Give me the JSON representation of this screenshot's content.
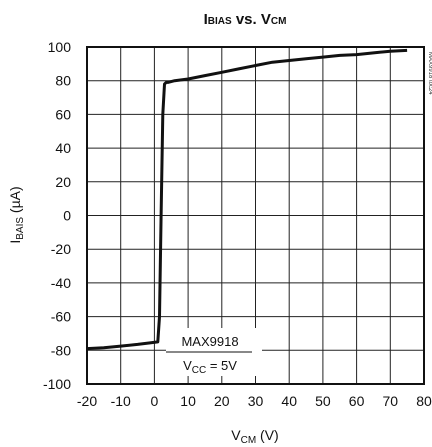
{
  "chart_data": {
    "type": "line",
    "title": {
      "main": "I",
      "main_sub": "BIAS",
      "mid": " vs. V",
      "end_sub": "CM"
    },
    "xlabel": {
      "main": "V",
      "sub": "CM",
      "unit": " (V)"
    },
    "ylabel": {
      "main": "I",
      "sub": "BAIS",
      "unit": " (µA)"
    },
    "xlim": [
      -20,
      80
    ],
    "ylim": [
      -100,
      100
    ],
    "x_ticks": [
      -20,
      -10,
      0,
      10,
      20,
      30,
      40,
      50,
      60,
      70,
      80
    ],
    "y_ticks": [
      100,
      80,
      60,
      40,
      20,
      0,
      -20,
      -40,
      -60,
      -80,
      -100
    ],
    "grid": true,
    "annotation": {
      "line1": "MAX9918",
      "line2_main": "V",
      "line2_sub": "CC",
      "line2_rest": " = 5V"
    },
    "side_id": "MAX9918 toc24",
    "series": [
      {
        "x": [
          -20,
          -15,
          -10,
          -5,
          -1,
          1,
          1.5,
          2,
          2.5,
          3,
          3.5,
          4,
          6,
          10,
          15,
          20,
          25,
          30,
          35,
          40,
          45,
          50,
          55,
          60,
          65,
          70,
          75
        ],
        "y": [
          -79,
          -78.5,
          -77.5,
          -76.5,
          -75.5,
          -75,
          -60,
          0,
          60,
          78,
          79,
          79,
          80,
          81,
          83,
          85,
          87,
          89,
          91,
          92,
          93,
          94,
          95,
          95.5,
          96.5,
          97.5,
          98
        ]
      }
    ]
  }
}
